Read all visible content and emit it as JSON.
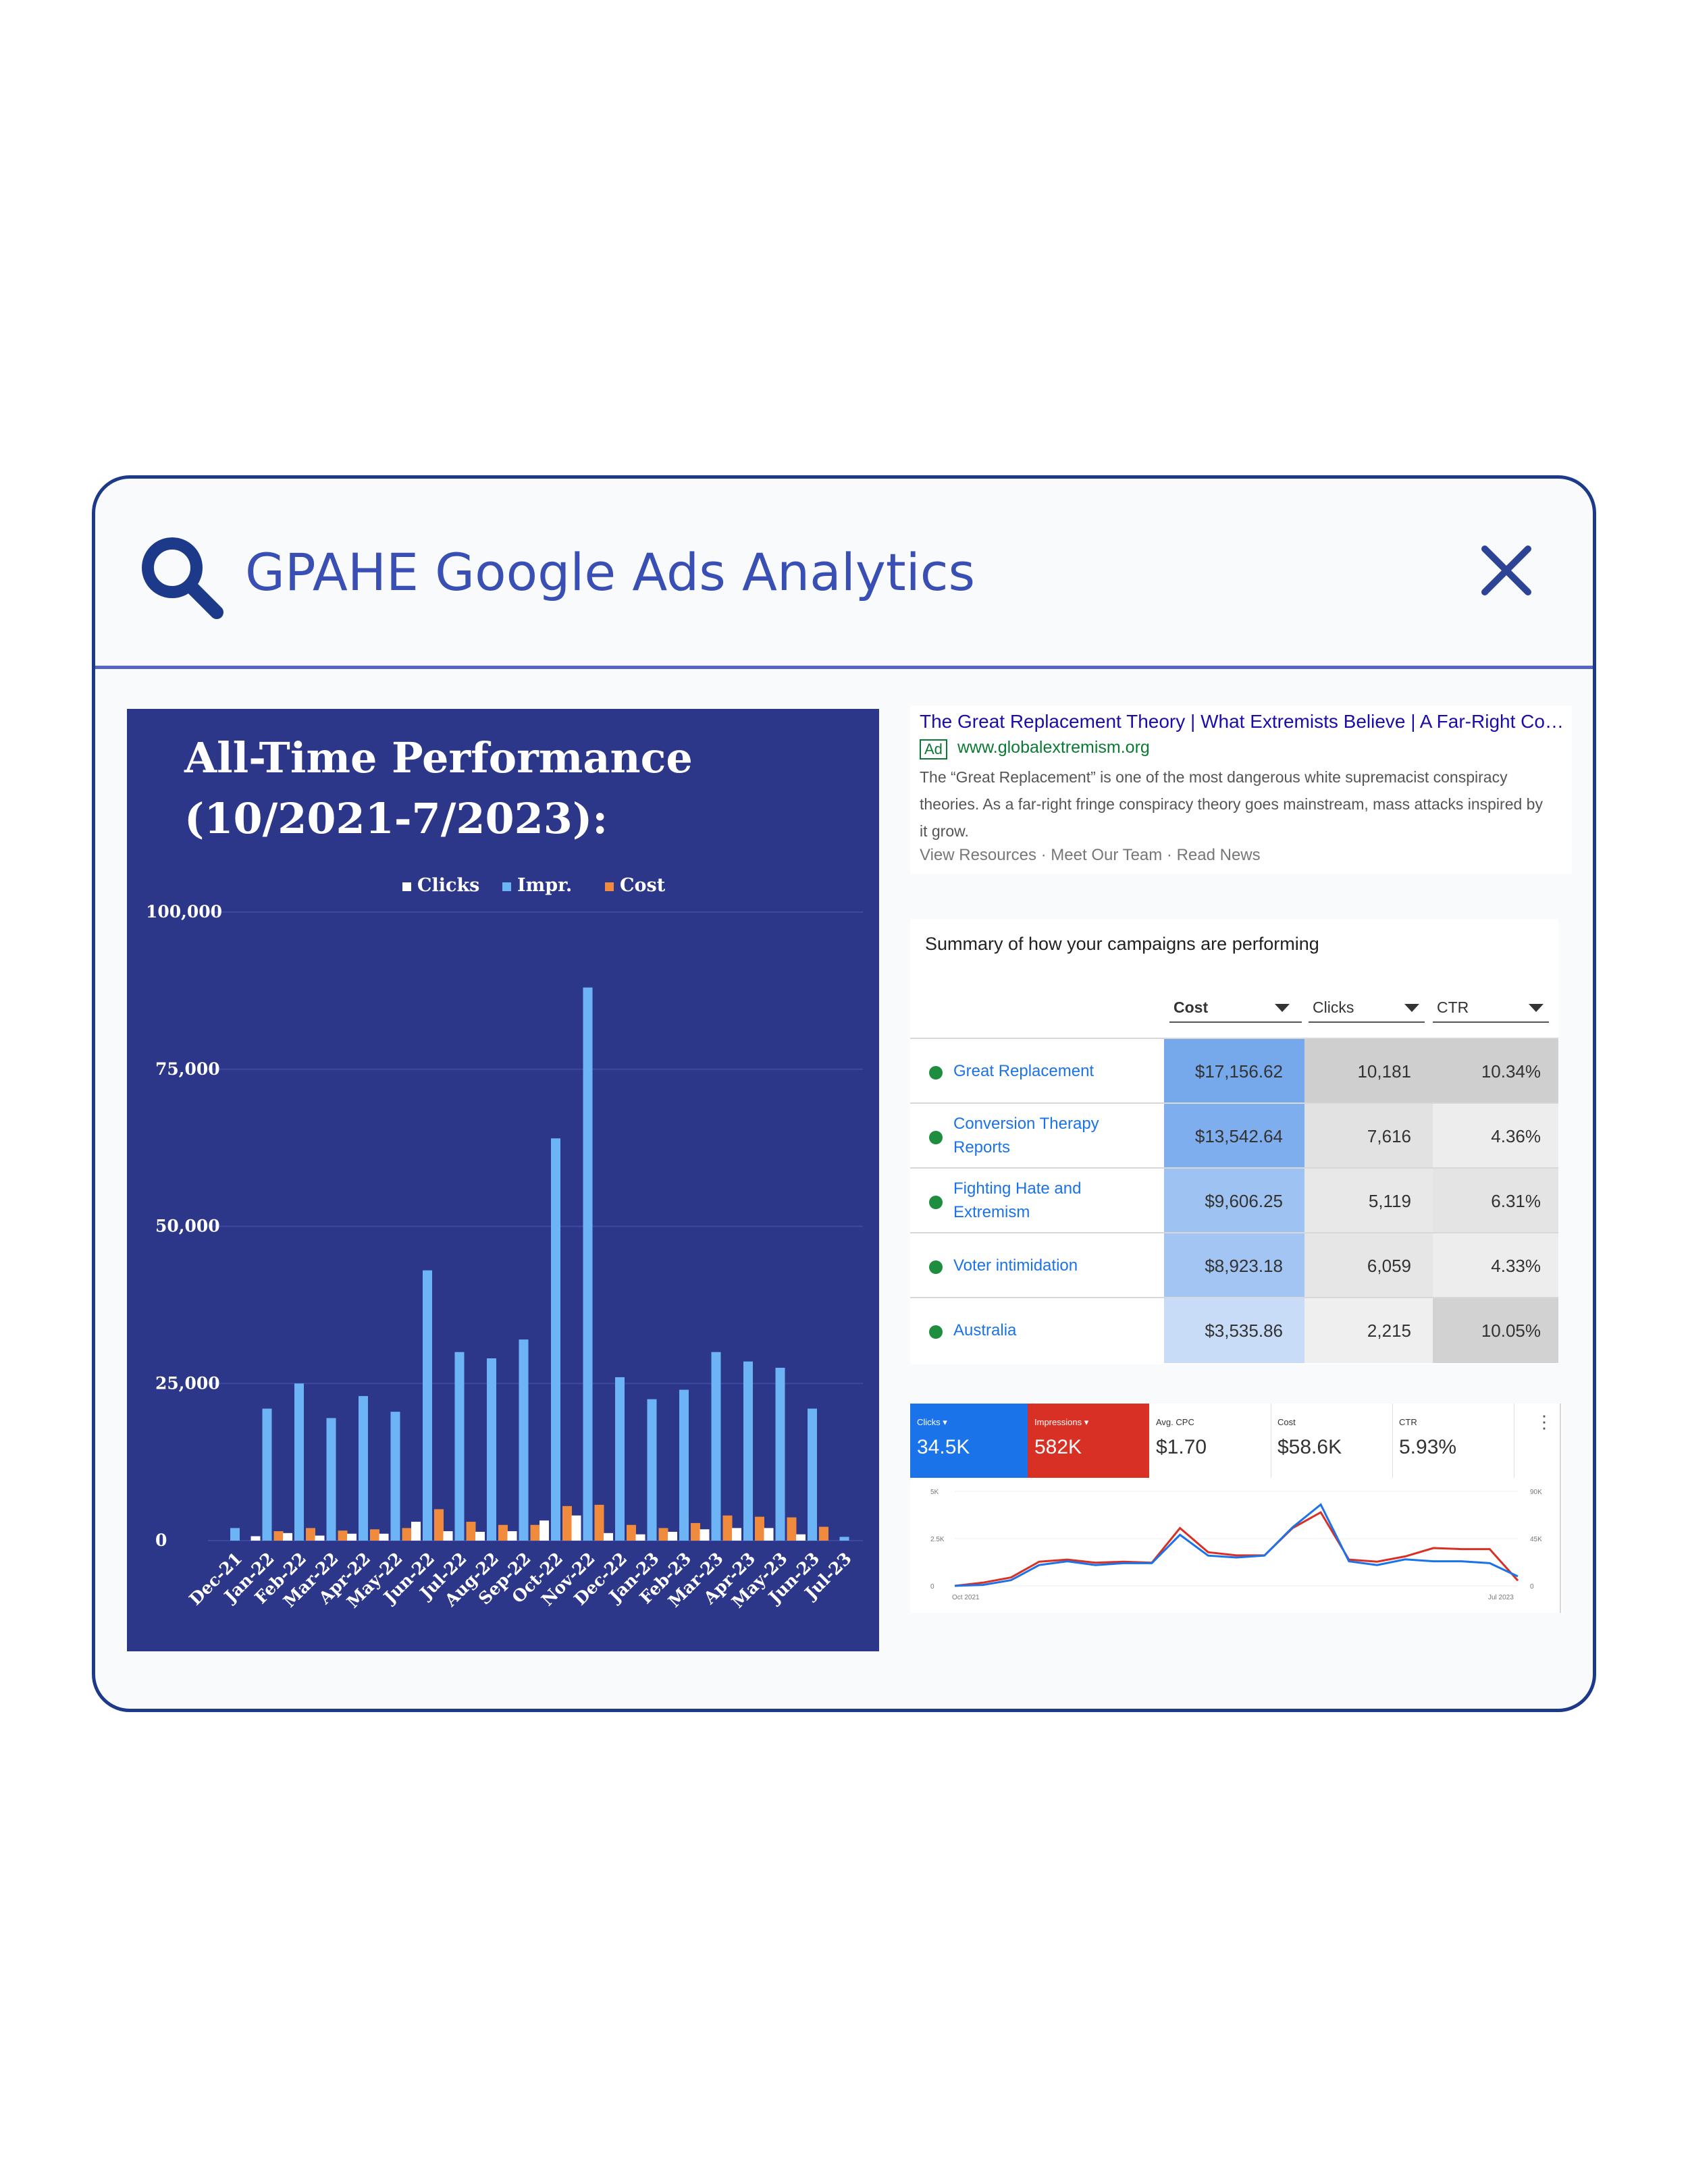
{
  "search": {
    "title": "GPAHE Google Ads Analytics"
  },
  "icons": {
    "search": "search-icon",
    "close": "close-icon"
  },
  "colors": {
    "frame_border": "#1d3a8a",
    "accent": "#3a4fb4",
    "chart_bg": "#2c378a",
    "clicks": "#ffffff",
    "impressions": "#6cb4f5",
    "cost": "#f08a3c",
    "google_blue": "#1a73e8",
    "google_red": "#d93025"
  },
  "left_panel": {
    "title": "All-Time Performance\n(10/2021-7/2023):"
  },
  "chart_data": {
    "type": "bar",
    "categories": [
      "Dec-21",
      "Jan-22",
      "Feb-22",
      "Mar-22",
      "Apr-22",
      "May-22",
      "Jun-22",
      "Jul-22",
      "Aug-22",
      "Sep-22",
      "Oct-22",
      "Nov-22",
      "Dec-22",
      "Jan-23",
      "Feb-23",
      "Mar-23",
      "Apr-23",
      "May-23",
      "Jun-23",
      "Jul-23"
    ],
    "series": [
      {
        "name": "Clicks",
        "values": [
          0,
          700,
          1200,
          800,
          1100,
          1100,
          3000,
          1500,
          1400,
          1500,
          3200,
          4000,
          1200,
          1000,
          1400,
          1800,
          2000,
          2000,
          1000,
          0
        ]
      },
      {
        "name": "Impr.",
        "values": [
          2000,
          21000,
          25000,
          19500,
          23000,
          20500,
          43000,
          30000,
          29000,
          32000,
          64000,
          88000,
          26000,
          22500,
          24000,
          30000,
          28500,
          27500,
          21000,
          600
        ]
      },
      {
        "name": "Cost",
        "values": [
          0,
          1500,
          2000,
          1600,
          1800,
          2000,
          5000,
          3000,
          2500,
          2500,
          5500,
          5700,
          2500,
          2000,
          2800,
          4000,
          3800,
          3700,
          2200,
          0
        ]
      }
    ],
    "yticks": [
      "0",
      "25,000",
      "50,000",
      "75,000",
      "100,000"
    ],
    "ylim": [
      0,
      100000
    ],
    "legend_position": "top-center",
    "grid": true
  },
  "ad": {
    "title": "The Great Replacement Theory | What Extremists Believe | A Far-Right Conspiracy",
    "badge": "Ad",
    "url": "www.globalextremism.org",
    "description": "The “Great Replacement” is one of the most dangerous white supremacist conspiracy theories. As a far-right fringe conspiracy theory goes mainstream, mass attacks inspired by it grow.",
    "links": "View Resources · Meet Our Team · Read News"
  },
  "summary": {
    "title": "Summary of how your campaigns are performing",
    "columns": [
      "Cost",
      "Clicks",
      "CTR"
    ],
    "rows": [
      {
        "name": "Great Replacement",
        "cost": "$17,156.62",
        "clicks": "10,181",
        "ctr": "10.34%"
      },
      {
        "name": "Conversion Therapy Reports",
        "cost": "$13,542.64",
        "clicks": "7,616",
        "ctr": "4.36%"
      },
      {
        "name": "Fighting Hate and Extremism",
        "cost": "$9,606.25",
        "clicks": "5,119",
        "ctr": "6.31%"
      },
      {
        "name": "Voter intimidation",
        "cost": "$8,923.18",
        "clicks": "6,059",
        "ctr": "4.33%"
      },
      {
        "name": "Australia",
        "cost": "$3,535.86",
        "clicks": "2,215",
        "ctr": "10.05%"
      }
    ]
  },
  "metrics": {
    "tiles": [
      {
        "label": "Clicks ▾",
        "value": "34.5K"
      },
      {
        "label": "Impressions ▾",
        "value": "582K"
      },
      {
        "label": "Avg. CPC",
        "value": "$1.70"
      },
      {
        "label": "Cost",
        "value": "$58.6K"
      },
      {
        "label": "CTR",
        "value": "5.93%"
      }
    ],
    "more": "⋮",
    "left_axis": [
      "5K",
      "2.5K",
      "0"
    ],
    "right_axis": [
      "90K",
      "45K",
      "0"
    ],
    "x_start": "Oct 2021",
    "x_end": "Jul 2023",
    "clicks_trend": [
      0,
      50,
      300,
      1100,
      1300,
      1100,
      1200,
      1200,
      2700,
      1600,
      1500,
      1600,
      3100,
      4300,
      1300,
      1100,
      1400,
      1300,
      1300,
      1200,
      500
    ],
    "impressions_trend": [
      0,
      3000,
      8000,
      23000,
      25000,
      22000,
      23000,
      22000,
      55000,
      32000,
      29000,
      29000,
      55000,
      70000,
      25000,
      23000,
      28000,
      36000,
      35000,
      35000,
      5000
    ]
  }
}
